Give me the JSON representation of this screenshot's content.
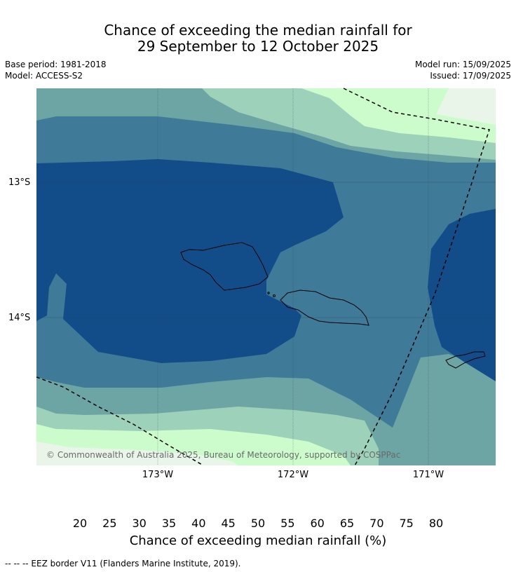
{
  "title_line1": "Chance of exceeding the median rainfall for",
  "title_line2": "29 September to 12 October 2025",
  "meta": {
    "base_period": "Base period: 1981-2018",
    "model": "Model: ACCESS-S2",
    "model_run": "Model run: 15/09/2025",
    "issued": "Issued: 17/09/2025"
  },
  "map": {
    "lat_labels": [
      "13°S",
      "14°S"
    ],
    "lon_labels": [
      "173°W",
      "172°W",
      "171°W"
    ],
    "copyright": "© Commonwealth of Australia 2025, Bureau of Meteorology, supported by COSPPac"
  },
  "colorbar": {
    "ticks": [
      "20",
      "25",
      "30",
      "35",
      "40",
      "45",
      "50",
      "55",
      "60",
      "65",
      "70",
      "75",
      "80"
    ],
    "colors": [
      "#b04b24",
      "#cc6530",
      "#e09443",
      "#fdcd6a",
      "#ebe9e4",
      "#ffffff",
      "#ffffff",
      "#e8f5e8",
      "#ccfccc",
      "#9dd1b9",
      "#6da5a5",
      "#407a99"
    ],
    "under_color": "#9a3a1e",
    "over_color": "#124d8a",
    "title": "Chance of exceeding median rainfall (%)"
  },
  "footnote": "--  --  -- EEZ border V11 (Flanders Marine Institute, 2019)."
}
